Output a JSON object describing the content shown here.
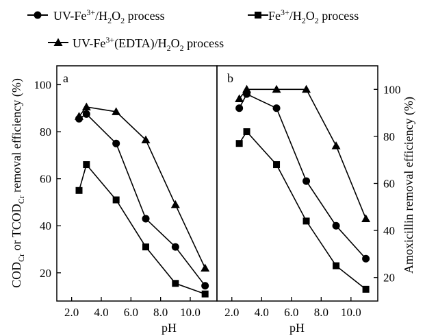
{
  "legend": {
    "uv_fe": {
      "base": "UV-Fe",
      "sup": "3+",
      "mid": "/H",
      "sub": "2",
      "tail": "O",
      "sub2": "2",
      "end": " process"
    },
    "fe": {
      "base": "Fe",
      "sup": "3+",
      "mid": "/H",
      "sub": "2",
      "tail": "O",
      "sub2": "2",
      "end": " process"
    },
    "uv_edta": {
      "base": "UV-Fe",
      "sup": "3+",
      "mid": "(EDTA)/H",
      "sub": "2",
      "tail": "O",
      "sub2": "2",
      "end": " process"
    }
  },
  "y_left_label": {
    "p1": "COD",
    "s1": "Cr",
    "p2": " or TCOD",
    "s2": "Cr",
    "p3": " removal efficiency (%)"
  },
  "y_right_label": "Amoxicillin removal efficiency (%)",
  "x_label_a": "pH",
  "x_label_b": "pH",
  "panel_a_label": "a",
  "panel_b_label": "b",
  "chart_data": [
    {
      "type": "line",
      "panel": "a",
      "xlabel": "pH",
      "ylabel": "COD_Cr or TCOD_Cr removal efficiency (%)",
      "xlim": [
        1.0,
        11.8
      ],
      "ylim": [
        8,
        108
      ],
      "xticks": [
        2.0,
        4.0,
        6.0,
        8.0,
        10.0
      ],
      "yticks": [
        20,
        40,
        60,
        80,
        100
      ],
      "xtick_labels": [
        "2.0",
        "4.0",
        "6.0",
        "8.0",
        "10.0"
      ],
      "ytick_labels": [
        "20",
        "40",
        "60",
        "80",
        "100"
      ],
      "series": [
        {
          "name": "UV-Fe3+/H2O2 process",
          "marker": "circle",
          "x": [
            2.5,
            3.0,
            5.0,
            7.0,
            9.0,
            11.0
          ],
          "y": [
            85.5,
            87.5,
            75,
            43,
            31,
            14.5
          ]
        },
        {
          "name": "Fe3+/H2O2 process",
          "marker": "square",
          "x": [
            2.5,
            3.0,
            5.0,
            7.0,
            9.0,
            11.0
          ],
          "y": [
            55,
            66,
            51,
            31,
            15.5,
            11
          ]
        },
        {
          "name": "UV-Fe3+(EDTA)/H2O2 process",
          "marker": "triangle",
          "x": [
            2.5,
            3.0,
            5.0,
            7.0,
            9.0,
            11.0
          ],
          "y": [
            86.5,
            90.5,
            88.5,
            76.5,
            49,
            22
          ]
        }
      ]
    },
    {
      "type": "line",
      "panel": "b",
      "xlabel": "pH",
      "ylabel": "Amoxicillin removal efficiency (%)",
      "xlim": [
        1.0,
        11.8
      ],
      "ylim": [
        10,
        110
      ],
      "xticks": [
        2.0,
        4.0,
        6.0,
        8.0,
        10.0
      ],
      "yticks": [
        20,
        40,
        60,
        80,
        100
      ],
      "xtick_labels": [
        "2.0",
        "4.0",
        "6.0",
        "8.0",
        "10.0"
      ],
      "ytick_labels": [
        "20",
        "40",
        "60",
        "80",
        "100"
      ],
      "series": [
        {
          "name": "UV-Fe3+/H2O2 process",
          "marker": "circle",
          "x": [
            2.5,
            3.0,
            5.0,
            7.0,
            9.0,
            11.0
          ],
          "y": [
            92,
            98,
            92,
            61,
            42,
            28
          ]
        },
        {
          "name": "Fe3+/H2O2 process",
          "marker": "square",
          "x": [
            2.5,
            3.0,
            5.0,
            7.0,
            9.0,
            11.0
          ],
          "y": [
            77,
            82,
            68,
            44,
            25,
            15
          ]
        },
        {
          "name": "UV-Fe3+(EDTA)/H2O2 process",
          "marker": "triangle",
          "x": [
            2.5,
            3.0,
            5.0,
            7.0,
            9.0,
            11.0
          ],
          "y": [
            96,
            100,
            100,
            100,
            76,
            45
          ]
        }
      ]
    }
  ]
}
